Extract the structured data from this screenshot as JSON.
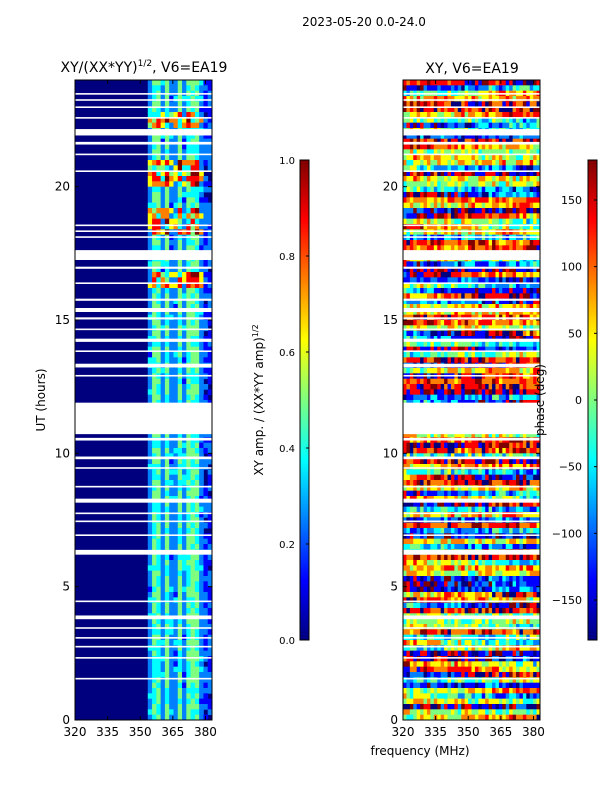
{
  "figure": {
    "suptitle": "2023-05-20 0.0-24.0",
    "shared_xlabel": "frequency (MHz)"
  },
  "colormap": [
    "#00007f",
    "#0000ff",
    "#007fff",
    "#00ffff",
    "#7fff7f",
    "#ffff00",
    "#ff7f00",
    "#ff0000",
    "#7f0000"
  ],
  "chart_data": [
    {
      "type": "heatmap",
      "title": "XY/(XX*YY)^{1/2}, V6=EA19",
      "title_main": "XY/(XX*YY)",
      "title_sup": "1/2",
      "title_tail": ", V6=EA19",
      "xlabel": "frequency (MHz)",
      "ylabel": "UT (hours)",
      "xlim": [
        320,
        383
      ],
      "ylim": [
        0,
        24
      ],
      "xticks": [
        320,
        335,
        350,
        365,
        380
      ],
      "yticks": [
        0,
        5,
        10,
        15,
        20
      ],
      "colorbar": {
        "label": "XY amp. / (XX*YY amp)^{1/2}",
        "label_main": "XY amp. / (XX*YY amp)",
        "label_sup": "1/2",
        "range": [
          0.0,
          1.0
        ],
        "ticks": [
          "0.0",
          "0.2",
          "0.4",
          "0.6",
          "0.8",
          "1.0"
        ]
      },
      "flagged_hours": [
        [
          1.52,
          1.58
        ],
        [
          2.3,
          2.36
        ],
        [
          2.72,
          2.78
        ],
        [
          3.05,
          3.11
        ],
        [
          3.42,
          3.48
        ],
        [
          3.78,
          3.92
        ],
        [
          4.42,
          4.48
        ],
        [
          6.2,
          6.38
        ],
        [
          6.9,
          6.96
        ],
        [
          7.42,
          7.48
        ],
        [
          7.72,
          7.78
        ],
        [
          8.15,
          8.3
        ],
        [
          8.72,
          8.78
        ],
        [
          9.42,
          9.48
        ],
        [
          9.78,
          9.88
        ],
        [
          10.48,
          10.58
        ],
        [
          10.72,
          11.9
        ],
        [
          12.88,
          12.94
        ],
        [
          13.22,
          13.36
        ],
        [
          13.8,
          13.86
        ],
        [
          14.18,
          14.3
        ],
        [
          14.62,
          14.68
        ],
        [
          15.02,
          15.1
        ],
        [
          15.3,
          15.45
        ],
        [
          15.72,
          15.8
        ],
        [
          16.35,
          16.41
        ],
        [
          16.92,
          17.0
        ],
        [
          17.25,
          17.62
        ],
        [
          18.08,
          18.14
        ],
        [
          18.3,
          18.36
        ],
        [
          18.52,
          18.58
        ],
        [
          20.55,
          20.61
        ],
        [
          21.18,
          21.24
        ],
        [
          21.58,
          21.68
        ],
        [
          21.92,
          22.16
        ],
        [
          22.55,
          22.61
        ],
        [
          22.95,
          23.01
        ],
        [
          23.22,
          23.28
        ],
        [
          23.45,
          23.51
        ]
      ],
      "bright_channels_mhz": [
        [
          356,
          360
        ],
        [
          362,
          364
        ],
        [
          368,
          370
        ],
        [
          372,
          377
        ]
      ],
      "bright_hours": [
        [
          16.2,
          16.8
        ],
        [
          18.2,
          19.2
        ],
        [
          20.0,
          21.0
        ],
        [
          22.2,
          22.8
        ]
      ]
    },
    {
      "type": "heatmap",
      "title": "XY, V6=EA19",
      "xlabel": "frequency (MHz)",
      "ylabel": "",
      "xlim": [
        320,
        383
      ],
      "ylim": [
        0,
        24
      ],
      "xticks": [
        320,
        335,
        350,
        365,
        380
      ],
      "yticks": [
        0,
        5,
        10,
        15,
        20
      ],
      "colorbar": {
        "label": "phase (deg)",
        "range": [
          -180,
          180
        ],
        "ticks": [
          "150",
          "100",
          "50",
          "0",
          "−50",
          "−100",
          "−150"
        ]
      }
    }
  ]
}
